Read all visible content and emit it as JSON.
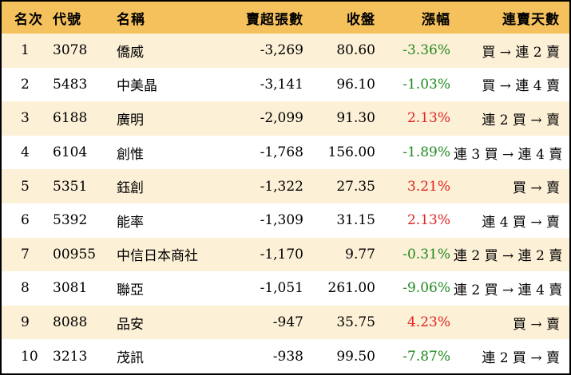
{
  "headers": {
    "rank": "名次",
    "code": "代號",
    "name": "名稱",
    "net_sell": "賣超張數",
    "close": "收盤",
    "change": "漲幅",
    "streak": "連賣天數"
  },
  "rows": [
    {
      "rank": "1",
      "code": "3078",
      "name": "僑威",
      "net_sell": "-3,269",
      "close": "80.60",
      "change": "-3.36%",
      "streak": "買 → 連 2 賣"
    },
    {
      "rank": "2",
      "code": "5483",
      "name": "中美晶",
      "net_sell": "-3,141",
      "close": "96.10",
      "change": "-1.03%",
      "streak": "買 → 連 4 賣"
    },
    {
      "rank": "3",
      "code": "6188",
      "name": "廣明",
      "net_sell": "-2,099",
      "close": "91.30",
      "change": "2.13%",
      "streak": "連 2 買 → 賣"
    },
    {
      "rank": "4",
      "code": "6104",
      "name": "創惟",
      "net_sell": "-1,768",
      "close": "156.00",
      "change": "-1.89%",
      "streak": "連 3 買 → 連 4 賣"
    },
    {
      "rank": "5",
      "code": "5351",
      "name": "鈺創",
      "net_sell": "-1,322",
      "close": "27.35",
      "change": "3.21%",
      "streak": "買 → 賣"
    },
    {
      "rank": "6",
      "code": "5392",
      "name": "能率",
      "net_sell": "-1,309",
      "close": "31.15",
      "change": "2.13%",
      "streak": "連 4 買 → 賣"
    },
    {
      "rank": "7",
      "code": "00955",
      "name": "中信日本商社",
      "net_sell": "-1,170",
      "close": "9.77",
      "change": "-0.31%",
      "streak": "連 2 買 → 連 2 賣"
    },
    {
      "rank": "8",
      "code": "3081",
      "name": "聯亞",
      "net_sell": "-1,051",
      "close": "261.00",
      "change": "-9.06%",
      "streak": "連 2 買 → 連 4 賣"
    },
    {
      "rank": "9",
      "code": "8088",
      "name": "品安",
      "net_sell": "-947",
      "close": "35.75",
      "change": "4.23%",
      "streak": "買 → 賣"
    },
    {
      "rank": "10",
      "code": "3213",
      "name": "茂訊",
      "net_sell": "-938",
      "close": "99.50",
      "change": "-7.87%",
      "streak": "連 2 買 → 賣"
    }
  ],
  "colors": {
    "header_bg": "#f4c15d",
    "stripe_bg": "#fcf0d6",
    "negative_change": "#1f8a1f",
    "positive_change": "#e02424",
    "border": "#000000"
  }
}
